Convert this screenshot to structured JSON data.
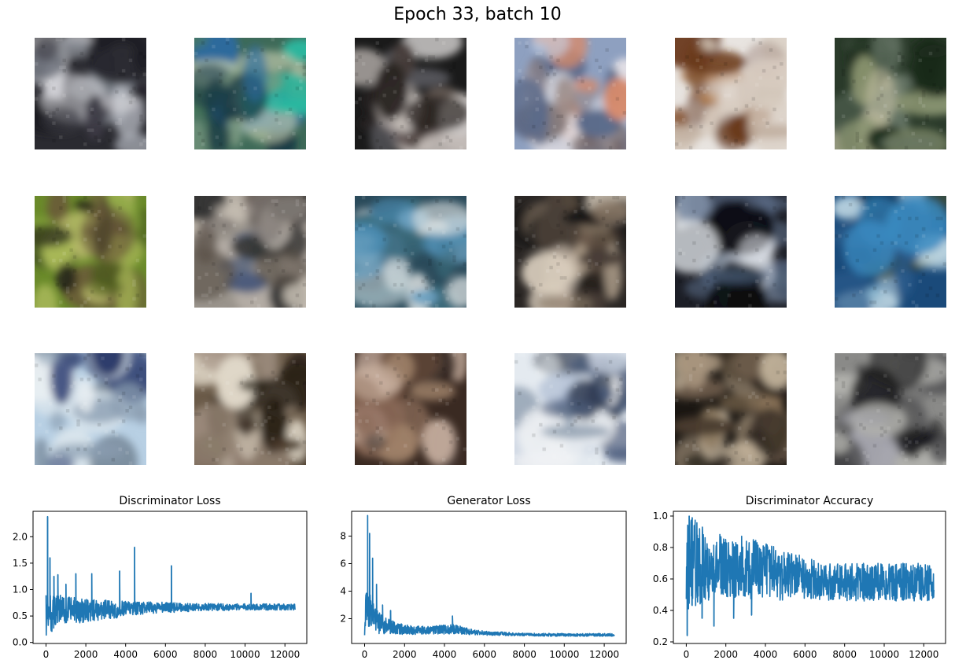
{
  "suptitle": "Epoch 33, batch 10",
  "samples": {
    "rows": 3,
    "cols": 6,
    "tiles": [
      {
        "name": "sample-1-1",
        "bg": "#2a2a30",
        "colors": [
          "#8a8e96",
          "#d8d8dc",
          "#5a5e6a",
          "#3c3a44",
          "#b0b4bc",
          "#1c1c22"
        ]
      },
      {
        "name": "sample-1-2",
        "bg": "#3e6a58",
        "colors": [
          "#2ab8a0",
          "#4a7a5c",
          "#7a9880",
          "#1a3a44",
          "#c8d0b0",
          "#2a6aa0"
        ]
      },
      {
        "name": "sample-1-3",
        "bg": "#1a1a1a",
        "colors": [
          "#e8e6e4",
          "#8a7a70",
          "#4a3e3c",
          "#c8c0bc",
          "#6a6a70",
          "#2a2422"
        ]
      },
      {
        "name": "sample-1-4",
        "bg": "#8ea0c0",
        "colors": [
          "#c8d4e8",
          "#6a5a58",
          "#e8e4e8",
          "#9a8884",
          "#5a6a8a",
          "#d88a6a"
        ]
      },
      {
        "name": "sample-1-5",
        "bg": "#e8e4e0",
        "colors": [
          "#8a5a3a",
          "#b07a4a",
          "#c8b8a8",
          "#6a3a1a",
          "#d8ccc0",
          "#a8948a"
        ]
      },
      {
        "name": "sample-1-6",
        "bg": "#2a3a2a",
        "colors": [
          "#8a9470",
          "#4a5a4a",
          "#a8a890",
          "#1a2a1a",
          "#6a7a6a",
          "#c0bca0"
        ]
      },
      {
        "name": "sample-2-1",
        "bg": "#6a8a2a",
        "colors": [
          "#8aa840",
          "#4a5a1a",
          "#a8b858",
          "#2a2a1a",
          "#6a5a3a",
          "#c0c070"
        ]
      },
      {
        "name": "sample-2-2",
        "bg": "#9a948c",
        "colors": [
          "#c8c0b4",
          "#5a5048",
          "#2a2a2a",
          "#7a7470",
          "#b8b0a8",
          "#4a5a7a"
        ]
      },
      {
        "name": "sample-2-3",
        "bg": "#2a4a5a",
        "colors": [
          "#4a8ab0",
          "#c8d4d8",
          "#1a2a3a",
          "#6aa0c0",
          "#e0e4e4",
          "#3a6a7a"
        ]
      },
      {
        "name": "sample-2-4",
        "bg": "#2a2624",
        "colors": [
          "#b0a08c",
          "#6a5a4a",
          "#d8ccbc",
          "#4a4038",
          "#8a7a68",
          "#181414"
        ]
      },
      {
        "name": "sample-2-5",
        "bg": "#1c1e26",
        "colors": [
          "#8090a8",
          "#c8d0dc",
          "#3a4a60",
          "#e8ecf0",
          "#0a0a10",
          "#5a6a84"
        ]
      },
      {
        "name": "sample-2-6",
        "bg": "#1a4a7a",
        "colors": [
          "#3a8ac0",
          "#0a2a4a",
          "#8ab8d0",
          "#2a5a8a",
          "#c0d8e4",
          "#2a3a2a"
        ]
      },
      {
        "name": "sample-3-1",
        "bg": "#b8d0e4",
        "colors": [
          "#d8e4ec",
          "#3a4a7a",
          "#8a9cb0",
          "#2a3a6a",
          "#e8eef2",
          "#6a7a8a"
        ]
      },
      {
        "name": "sample-3-2",
        "bg": "#6a5a48",
        "colors": [
          "#e0d8c8",
          "#2a2218",
          "#a8988a",
          "#c8bcb0",
          "#4a3a2a",
          "#8a7a6a"
        ]
      },
      {
        "name": "sample-3-3",
        "bg": "#3a2a22",
        "colors": [
          "#6a4a38",
          "#a88a70",
          "#2a1e1a",
          "#8a6a58",
          "#c8b0a0",
          "#4a3e3a"
        ]
      },
      {
        "name": "sample-3-4",
        "bg": "#e4eaf0",
        "colors": [
          "#a8b8d0",
          "#4a5a7a",
          "#d0d8e4",
          "#2a3448",
          "#8a9aac",
          "#f0f2f4"
        ]
      },
      {
        "name": "sample-3-5",
        "bg": "#1a1612",
        "colors": [
          "#8a7458",
          "#4a3c2e",
          "#a8967e",
          "#6a5a4a",
          "#c8b8a0",
          "#2a221c"
        ]
      },
      {
        "name": "sample-3-6",
        "bg": "#8a8a88",
        "colors": [
          "#b0b0ac",
          "#3a3a3a",
          "#6a6a6a",
          "#1a1a1c",
          "#a8a8b0",
          "#5a5a5c"
        ]
      }
    ]
  },
  "chart_data": [
    {
      "type": "line",
      "title": "Discriminator Loss",
      "xlabel": "",
      "ylabel": "",
      "xlim": [
        -650,
        13100
      ],
      "ylim": [
        -0.02,
        2.48
      ],
      "xticks": [
        0,
        2000,
        4000,
        6000,
        8000,
        10000,
        12000
      ],
      "yticks": [
        0.0,
        0.5,
        1.0,
        1.5,
        2.0
      ],
      "ytick_labels": [
        "0.0",
        "0.5",
        "1.0",
        "1.5",
        "2.0"
      ],
      "line_color": "#1f77b4",
      "n_points": 12500,
      "envelope": {
        "x": [
          0,
          100,
          500,
          1000,
          2000,
          3000,
          4000,
          5000,
          6000,
          7000,
          8000,
          10000,
          12500
        ],
        "center": [
          0.55,
          0.5,
          0.6,
          0.6,
          0.6,
          0.62,
          0.63,
          0.65,
          0.66,
          0.66,
          0.67,
          0.67,
          0.67
        ],
        "spread": [
          0.45,
          0.4,
          0.3,
          0.28,
          0.22,
          0.18,
          0.15,
          0.12,
          0.1,
          0.08,
          0.07,
          0.06,
          0.06
        ]
      },
      "spikes": [
        {
          "x": 80,
          "y": 2.38
        },
        {
          "x": 200,
          "y": 1.6
        },
        {
          "x": 400,
          "y": 1.25
        },
        {
          "x": 600,
          "y": 1.28
        },
        {
          "x": 1000,
          "y": 1.1
        },
        {
          "x": 1500,
          "y": 1.3
        },
        {
          "x": 2300,
          "y": 1.3
        },
        {
          "x": 3700,
          "y": 1.35
        },
        {
          "x": 4450,
          "y": 1.8
        },
        {
          "x": 6300,
          "y": 1.45
        },
        {
          "x": 10300,
          "y": 0.93
        }
      ]
    },
    {
      "type": "line",
      "title": "Generator Loss",
      "xlabel": "",
      "ylabel": "",
      "xlim": [
        -650,
        13100
      ],
      "ylim": [
        0.2,
        9.8
      ],
      "xticks": [
        0,
        2000,
        4000,
        6000,
        8000,
        10000,
        12000
      ],
      "yticks": [
        2,
        4,
        6,
        8
      ],
      "ytick_labels": [
        "2",
        "4",
        "6",
        "8"
      ],
      "line_color": "#1f77b4",
      "n_points": 12500,
      "envelope": {
        "x": [
          0,
          100,
          300,
          600,
          1000,
          2000,
          3000,
          4000,
          4400,
          5000,
          6000,
          8000,
          10000,
          12500
        ],
        "center": [
          2.0,
          3.0,
          2.5,
          1.8,
          1.5,
          1.2,
          1.15,
          1.2,
          1.3,
          1.1,
          0.95,
          0.85,
          0.82,
          0.82
        ],
        "spread": [
          1.2,
          1.5,
          1.2,
          0.9,
          0.6,
          0.35,
          0.3,
          0.35,
          0.4,
          0.25,
          0.15,
          0.1,
          0.1,
          0.1
        ]
      },
      "spikes": [
        {
          "x": 150,
          "y": 9.5
        },
        {
          "x": 250,
          "y": 8.2
        },
        {
          "x": 400,
          "y": 6.4
        },
        {
          "x": 600,
          "y": 4.5
        },
        {
          "x": 900,
          "y": 3.0
        },
        {
          "x": 1300,
          "y": 2.6
        },
        {
          "x": 4400,
          "y": 2.2
        }
      ]
    },
    {
      "type": "line",
      "title": "Discriminator Accuracy",
      "xlabel": "",
      "ylabel": "",
      "xlim": [
        -650,
        13100
      ],
      "ylim": [
        0.19,
        1.03
      ],
      "xticks": [
        0,
        2000,
        4000,
        6000,
        8000,
        10000,
        12000
      ],
      "yticks": [
        0.2,
        0.4,
        0.6,
        0.8,
        1.0
      ],
      "ytick_labels": [
        "0.2",
        "0.4",
        "0.6",
        "0.8",
        "1.0"
      ],
      "line_color": "#1f77b4",
      "n_points": 12500,
      "envelope": {
        "x": [
          0,
          500,
          1000,
          2000,
          3000,
          4000,
          5000,
          6000,
          7000,
          8000,
          10000,
          12500
        ],
        "center": [
          0.7,
          0.7,
          0.68,
          0.68,
          0.67,
          0.65,
          0.62,
          0.6,
          0.58,
          0.58,
          0.58,
          0.58
        ],
        "spread": [
          0.3,
          0.28,
          0.22,
          0.2,
          0.2,
          0.18,
          0.16,
          0.14,
          0.12,
          0.12,
          0.12,
          0.12
        ]
      },
      "spikes": [
        {
          "x": 50,
          "y": 0.24
        },
        {
          "x": 150,
          "y": 1.0
        },
        {
          "x": 300,
          "y": 0.99
        },
        {
          "x": 800,
          "y": 0.35
        },
        {
          "x": 1400,
          "y": 0.3
        },
        {
          "x": 2400,
          "y": 0.35
        },
        {
          "x": 3300,
          "y": 0.37
        }
      ]
    }
  ]
}
